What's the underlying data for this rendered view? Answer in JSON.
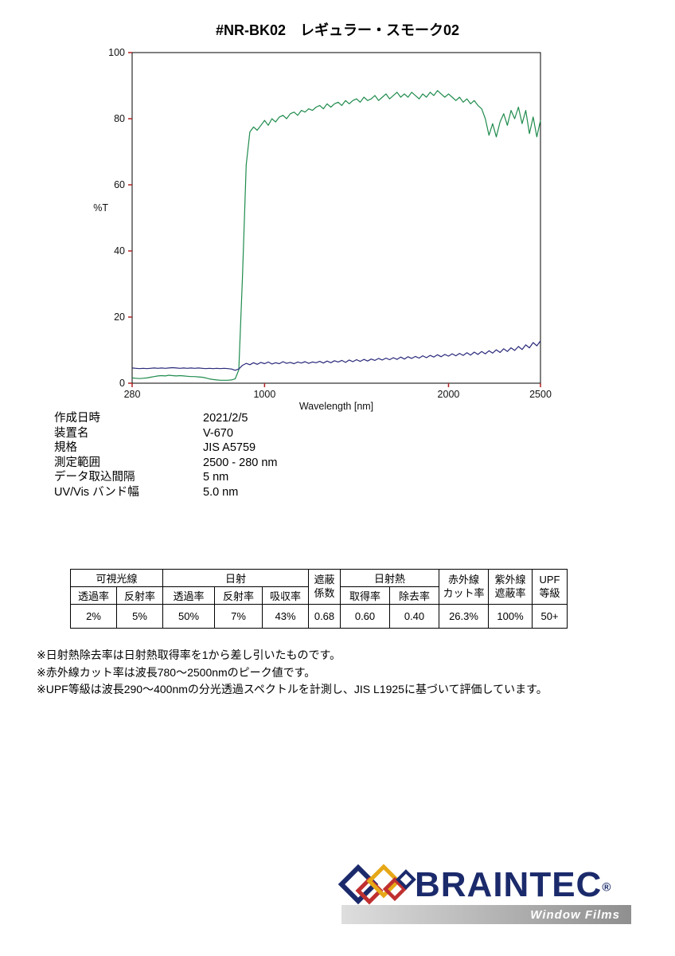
{
  "title": "#NR-BK02　レギュラー・スモーク02",
  "chart_data": {
    "type": "line",
    "title": "",
    "xlabel": "Wavelength [nm]",
    "ylabel": "%T",
    "xlim": [
      280,
      2500
    ],
    "ylim": [
      0,
      100
    ],
    "x_ticks": [
      280,
      1000,
      2000,
      2500
    ],
    "y_ticks": [
      0,
      20,
      40,
      60,
      80,
      100
    ],
    "x_start": 280,
    "x_step": 20,
    "axis_color": "#000000",
    "tick_color": "#b02020",
    "grid": false,
    "legend": "none",
    "series": [
      {
        "name": "green-curve",
        "color": "#1f8b4d",
        "values": [
          1.6,
          1.5,
          1.4,
          1.5,
          1.6,
          1.8,
          2.0,
          2.2,
          2.3,
          2.2,
          2.4,
          2.3,
          2.2,
          2.3,
          2.2,
          2.1,
          2.0,
          2.0,
          1.9,
          1.8,
          1.6,
          1.3,
          1.1,
          1.0,
          0.9,
          0.9,
          0.9,
          1.0,
          1.3,
          4.0,
          32,
          66,
          76,
          77.5,
          76.5,
          78,
          79.5,
          78,
          80,
          79,
          80.5,
          81,
          80,
          81.5,
          82,
          81,
          82.5,
          82,
          83,
          82.5,
          83.5,
          84,
          83,
          84.5,
          83.5,
          84.5,
          85,
          84,
          85.5,
          84.5,
          85.5,
          86,
          85,
          86.5,
          85.5,
          86,
          87,
          85.5,
          86.5,
          87.5,
          86,
          87,
          88,
          86.5,
          87.5,
          86.5,
          88,
          87,
          86,
          87.5,
          86.5,
          88,
          87,
          88.5,
          87.5,
          86.5,
          87.5,
          86.5,
          85.5,
          86.5,
          85,
          86,
          84.5,
          85.5,
          84,
          83,
          80,
          75,
          78.5,
          74.5,
          79,
          81.5,
          78,
          82.5,
          80,
          83.5,
          78.5,
          82.5,
          75.5,
          80.5,
          74.5,
          79.5
        ]
      },
      {
        "name": "navy-curve",
        "color": "#28287a",
        "values": [
          4.6,
          4.5,
          4.4,
          4.5,
          4.4,
          4.5,
          4.6,
          4.5,
          4.6,
          4.5,
          4.6,
          4.7,
          4.6,
          4.5,
          4.6,
          4.5,
          4.6,
          4.5,
          4.6,
          4.5,
          4.4,
          4.5,
          4.4,
          4.5,
          4.4,
          4.5,
          4.4,
          4.3,
          3.9,
          4.3,
          5.4,
          6.0,
          5.6,
          6.2,
          5.7,
          6.3,
          5.9,
          6.4,
          5.8,
          6.2,
          5.9,
          6.5,
          6.0,
          6.3,
          5.9,
          6.4,
          6.1,
          6.5,
          6.0,
          6.4,
          6.2,
          6.6,
          6.1,
          6.7,
          6.2,
          6.8,
          6.4,
          6.9,
          6.3,
          7.0,
          6.5,
          7.1,
          6.6,
          7.2,
          6.7,
          7.3,
          6.9,
          7.5,
          7.0,
          7.6,
          7.1,
          7.7,
          7.2,
          7.9,
          7.3,
          8.0,
          7.5,
          8.1,
          7.6,
          8.3,
          7.7,
          8.4,
          7.9,
          8.6,
          8.0,
          8.7,
          8.2,
          8.9,
          8.3,
          9.0,
          8.4,
          9.2,
          8.5,
          9.4,
          8.7,
          9.6,
          8.9,
          9.8,
          9.1,
          10.1,
          9.3,
          10.4,
          9.6,
          10.7,
          9.9,
          11.1,
          10.2,
          11.6,
          10.7,
          12.3,
          11.3,
          12.8
        ]
      }
    ]
  },
  "metadata": [
    {
      "label": "作成日時",
      "value": "2021/2/5"
    },
    {
      "label": "装置名",
      "value": "V-670"
    },
    {
      "label": "規格",
      "value": "JIS A5759"
    },
    {
      "label": "測定範囲",
      "value": "2500 - 280 nm"
    },
    {
      "label": "データ取込間隔",
      "value": "5 nm"
    },
    {
      "label": "UV/Vis バンド幅",
      "value": "5.0 nm"
    }
  ],
  "results_table": {
    "groups": {
      "visible": "可視光線",
      "solar": "日射",
      "heat": "日射熱"
    },
    "cols": {
      "shading": "遮蔽\n係数",
      "ir": "赤外線\nカット率",
      "uv": "紫外線\n遮蔽率",
      "upf": "UPF\n等級"
    },
    "subheaders": [
      "透過率",
      "反射率",
      "透過率",
      "反射率",
      "吸収率",
      "取得率",
      "除去率"
    ],
    "values": [
      "2%",
      "5%",
      "50%",
      "7%",
      "43%",
      "0.68",
      "0.60",
      "0.40",
      "26.3%",
      "100%",
      "50+"
    ]
  },
  "notes": [
    "※日射熱除去率は日射熱取得率を1から差し引いたものです。",
    "※赤外線カット率は波長780～2500nmのピーク値です。",
    "※UPF等級は波長290～400nmの分光透過スペクトルを計測し、JIS L1925に基づいて評価しています。"
  ],
  "logo": {
    "brand": "BRAINTEC",
    "reg": "®",
    "tagline": "Window Films",
    "colors": {
      "navy": "#1b2a6b",
      "red": "#c03030",
      "yellow": "#e6a817"
    }
  }
}
